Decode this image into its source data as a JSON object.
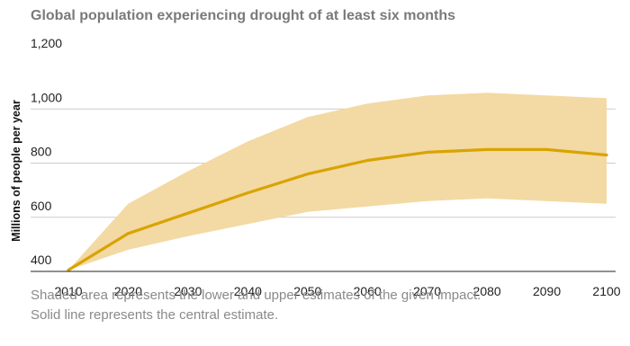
{
  "chart_data": {
    "type": "area",
    "title": "Global population experiencing drought of at least six months",
    "ylabel": "Millions of people per year",
    "xlabel": "",
    "x": [
      2010,
      2020,
      2030,
      2040,
      2050,
      2060,
      2070,
      2080,
      2090,
      2100
    ],
    "xlim": [
      2010,
      2100
    ],
    "ylim": [
      400,
      1200
    ],
    "yticks": [
      400,
      600,
      800,
      1000,
      1200
    ],
    "grid": "horizontal",
    "series": [
      {
        "role": "central",
        "color": "#d9a300",
        "values": [
          405,
          540,
          615,
          690,
          760,
          810,
          840,
          850,
          850,
          830
        ]
      }
    ],
    "band": {
      "color": "#f3d9a3",
      "lower": [
        405,
        480,
        530,
        575,
        620,
        640,
        660,
        670,
        660,
        650
      ],
      "upper": [
        405,
        650,
        770,
        880,
        970,
        1020,
        1050,
        1060,
        1050,
        1040
      ]
    },
    "notes": [
      "Shaded area represents the lower and upper estimates of the given impact.",
      "Solid line represents the central estimate."
    ]
  }
}
